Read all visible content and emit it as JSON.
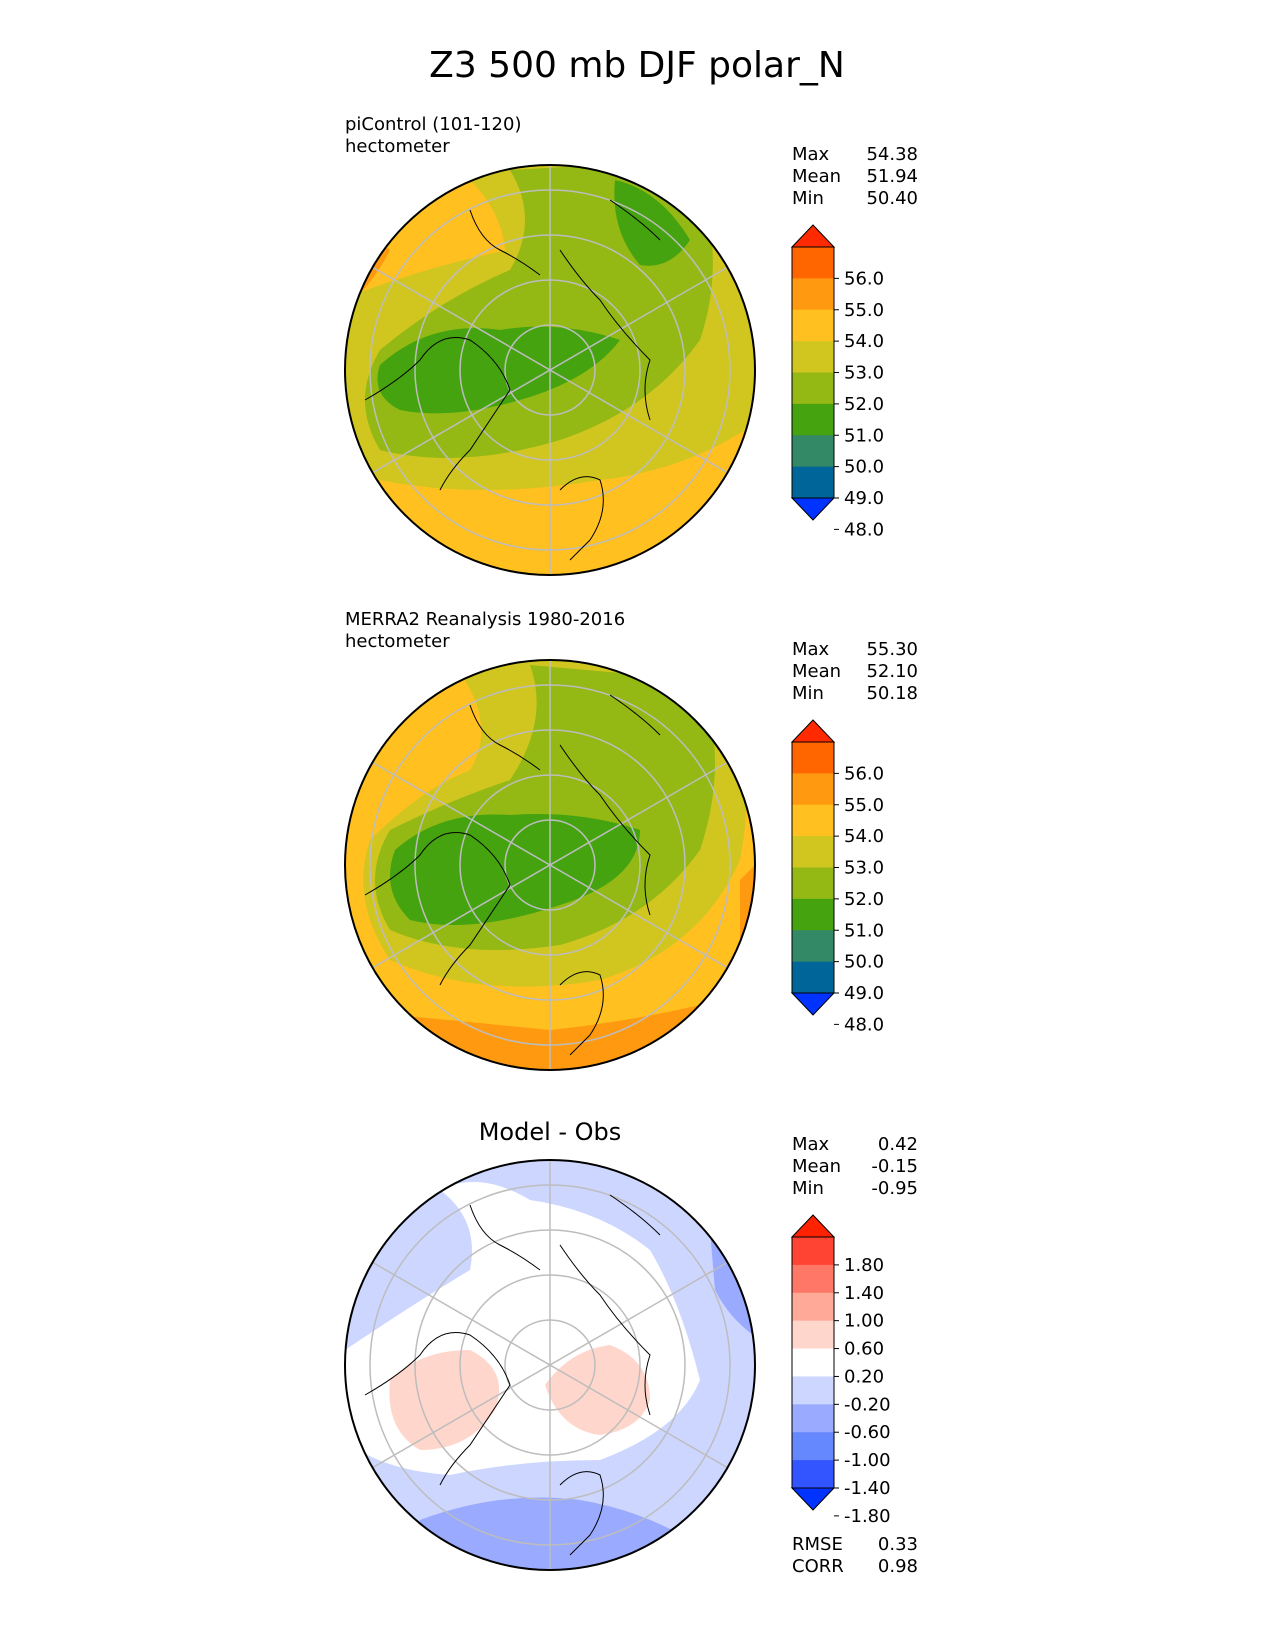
{
  "page_title": "Z3 500 mb DJF polar_N",
  "colors": {
    "mean_levels": [
      "#0033ff",
      "#006699",
      "#338866",
      "#44a30f",
      "#94b814",
      "#d1c620",
      "#ffc020",
      "#ff9a10",
      "#ff6600",
      "#ff2a00"
    ],
    "diff_levels": [
      "#0033ff",
      "#3355ff",
      "#6688ff",
      "#99aaff",
      "#ccd6ff",
      "#ffffff",
      "#ffd6cc",
      "#ffaa99",
      "#ff7766",
      "#ff4433",
      "#ff2200"
    ]
  },
  "chart_data": [
    {
      "type": "heatmap",
      "projection": "north-polar-stereographic",
      "title": "",
      "case_label": "piControl (101-120)",
      "units": "hectometer",
      "stats": [
        {
          "label": "Max",
          "value": "54.38"
        },
        {
          "label": "Mean",
          "value": "51.94"
        },
        {
          "label": "Min",
          "value": "50.40"
        }
      ],
      "colorbar": {
        "ticks": [
          "56.0",
          "55.0",
          "54.0",
          "53.0",
          "52.0",
          "51.0",
          "50.0",
          "49.0",
          "48.0"
        ],
        "extend": "both"
      },
      "fill": "mean_levels"
    },
    {
      "type": "heatmap",
      "projection": "north-polar-stereographic",
      "title": "",
      "case_label": "MERRA2 Reanalysis 1980-2016",
      "units": "hectometer",
      "stats": [
        {
          "label": "Max",
          "value": "55.30"
        },
        {
          "label": "Mean",
          "value": "52.10"
        },
        {
          "label": "Min",
          "value": "50.18"
        }
      ],
      "colorbar": {
        "ticks": [
          "56.0",
          "55.0",
          "54.0",
          "53.0",
          "52.0",
          "51.0",
          "50.0",
          "49.0",
          "48.0"
        ],
        "extend": "both"
      },
      "fill": "mean_levels"
    },
    {
      "type": "heatmap",
      "projection": "north-polar-stereographic",
      "title": "Model - Obs",
      "case_label": "",
      "units": "",
      "stats": [
        {
          "label": "Max",
          "value": "0.42"
        },
        {
          "label": "Mean",
          "value": "-0.15"
        },
        {
          "label": "Min",
          "value": "-0.95"
        }
      ],
      "colorbar": {
        "ticks": [
          "1.80",
          "1.40",
          "1.00",
          "0.60",
          "0.20",
          "-0.20",
          "-0.60",
          "-1.00",
          "-1.40",
          "-1.80"
        ],
        "extend": "both"
      },
      "metrics": [
        {
          "label": "RMSE",
          "value": "0.33"
        },
        {
          "label": "CORR",
          "value": "0.98"
        }
      ],
      "fill": "diff_levels"
    }
  ]
}
